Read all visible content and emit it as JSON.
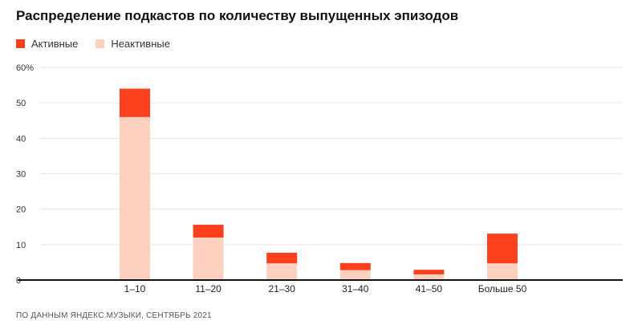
{
  "chart_data": {
    "type": "bar",
    "stacked": true,
    "title": "Распределение подкастов по количеству выпущенных эпизодов",
    "categories": [
      "1–10",
      "11–20",
      "21–30",
      "31–40",
      "41–50",
      "Больше 50"
    ],
    "series": [
      {
        "name": "Неактивные",
        "color": "#fdd0bf",
        "values": [
          46,
          12,
          4.7,
          2.8,
          1.6,
          4.7
        ]
      },
      {
        "name": "Активные",
        "color": "#fc3f1d",
        "values": [
          8,
          3.6,
          3.0,
          2.0,
          1.3,
          8.4
        ]
      }
    ],
    "ylim": [
      0,
      60
    ],
    "yticks": [
      0,
      10,
      20,
      30,
      40,
      50,
      60
    ],
    "ytick_labels": [
      "0",
      "10",
      "20",
      "30",
      "40",
      "50",
      "60%"
    ],
    "grid": true,
    "legend": "top-left",
    "source": "ПО ДАННЫМ ЯНДЕКС.МУЗЫКИ, СЕНТЯБРЬ 2021"
  }
}
